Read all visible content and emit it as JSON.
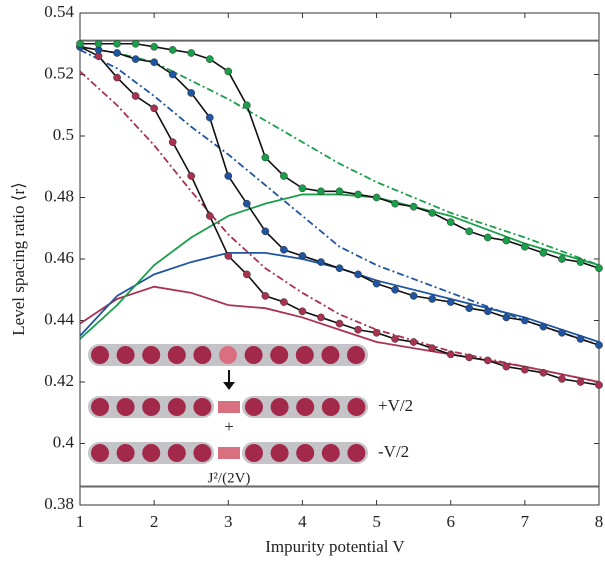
{
  "chart_data": {
    "type": "line",
    "xlabel": "Impurity potential V",
    "ylabel": "Level spacing ratio ⟨r⟩",
    "xlim": [
      1,
      8
    ],
    "ylim": [
      0.38,
      0.54
    ],
    "xticks": [
      1,
      2,
      3,
      4,
      5,
      6,
      7,
      8
    ],
    "yticks": [
      0.38,
      0.4,
      0.42,
      0.44,
      0.46,
      0.48,
      0.5,
      0.52,
      0.54
    ],
    "reference_lines": [
      0.531,
      0.386
    ],
    "reference_color": "#666666",
    "series": [
      {
        "style": "solid",
        "color": "#a8324f",
        "x": [
          1,
          1.5,
          2,
          2.5,
          3,
          3.5,
          4,
          4.5,
          5,
          6,
          7,
          8
        ],
        "values": [
          0.439,
          0.447,
          0.451,
          0.449,
          0.445,
          0.444,
          0.441,
          0.437,
          0.433,
          0.429,
          0.425,
          0.42
        ]
      },
      {
        "style": "solid",
        "color": "#1f55a0",
        "x": [
          1,
          1.5,
          2,
          2.5,
          3,
          3.5,
          4,
          4.5,
          5,
          6,
          7,
          8
        ],
        "values": [
          0.435,
          0.448,
          0.455,
          0.459,
          0.462,
          0.462,
          0.46,
          0.457,
          0.453,
          0.447,
          0.441,
          0.433
        ]
      },
      {
        "style": "solid",
        "color": "#1a9e4a",
        "x": [
          1,
          1.5,
          2,
          2.5,
          3,
          3.5,
          4,
          4.5,
          5,
          6,
          7,
          8
        ],
        "values": [
          0.434,
          0.445,
          0.458,
          0.467,
          0.474,
          0.478,
          0.481,
          0.481,
          0.48,
          0.474,
          0.465,
          0.458
        ]
      },
      {
        "style": "dashdot",
        "color": "#a8324f",
        "x": [
          1,
          1.5,
          2,
          2.5,
          3,
          3.5,
          4,
          4.5,
          5,
          6,
          7,
          8
        ],
        "values": [
          0.521,
          0.51,
          0.497,
          0.482,
          0.468,
          0.457,
          0.449,
          0.442,
          0.437,
          0.43,
          0.425,
          0.42
        ]
      },
      {
        "style": "dashdot",
        "color": "#1f55a0",
        "x": [
          1,
          1.5,
          2,
          2.5,
          3,
          3.5,
          4,
          4.5,
          5,
          6,
          7,
          8
        ],
        "values": [
          0.528,
          0.522,
          0.513,
          0.503,
          0.494,
          0.484,
          0.474,
          0.464,
          0.458,
          0.449,
          0.44,
          0.432
        ]
      },
      {
        "style": "dashdot",
        "color": "#1a9e4a",
        "x": [
          1,
          1.5,
          2,
          2.5,
          3,
          3.5,
          4,
          4.5,
          5,
          6,
          7,
          8
        ],
        "values": [
          0.529,
          0.527,
          0.524,
          0.518,
          0.512,
          0.505,
          0.498,
          0.491,
          0.485,
          0.475,
          0.467,
          0.458
        ]
      },
      {
        "style": "dots",
        "color": "#a8324f",
        "line_color": "#111111",
        "x": [
          1,
          1.25,
          1.5,
          1.75,
          2,
          2.25,
          2.5,
          2.75,
          3,
          3.25,
          3.5,
          3.75,
          4,
          4.25,
          4.5,
          4.75,
          5,
          5.25,
          5.5,
          5.75,
          6,
          6.25,
          6.5,
          6.75,
          7,
          7.25,
          7.5,
          7.75,
          8
        ],
        "values": [
          0.529,
          0.526,
          0.519,
          0.513,
          0.509,
          0.498,
          0.487,
          0.474,
          0.461,
          0.455,
          0.448,
          0.446,
          0.443,
          0.441,
          0.439,
          0.437,
          0.436,
          0.434,
          0.433,
          0.431,
          0.429,
          0.428,
          0.427,
          0.425,
          0.424,
          0.423,
          0.421,
          0.42,
          0.419
        ]
      },
      {
        "style": "dots",
        "color": "#1f55a0",
        "line_color": "#111111",
        "x": [
          1,
          1.25,
          1.5,
          1.75,
          2,
          2.25,
          2.5,
          2.75,
          3,
          3.25,
          3.5,
          3.75,
          4,
          4.25,
          4.5,
          4.75,
          5,
          5.25,
          5.5,
          5.75,
          6,
          6.25,
          6.5,
          6.75,
          7,
          7.25,
          7.5,
          7.75,
          8
        ],
        "values": [
          0.529,
          0.528,
          0.527,
          0.525,
          0.524,
          0.52,
          0.514,
          0.506,
          0.487,
          0.478,
          0.469,
          0.463,
          0.461,
          0.459,
          0.457,
          0.455,
          0.452,
          0.45,
          0.448,
          0.447,
          0.446,
          0.444,
          0.443,
          0.441,
          0.44,
          0.438,
          0.436,
          0.434,
          0.432
        ]
      },
      {
        "style": "dots",
        "color": "#1a9e4a",
        "line_color": "#111111",
        "x": [
          1,
          1.25,
          1.5,
          1.75,
          2,
          2.25,
          2.5,
          2.75,
          3,
          3.25,
          3.5,
          3.75,
          4,
          4.25,
          4.5,
          4.75,
          5,
          5.25,
          5.5,
          5.75,
          6,
          6.25,
          6.5,
          6.75,
          7,
          7.25,
          7.5,
          7.75,
          8
        ],
        "values": [
          0.53,
          0.53,
          0.53,
          0.53,
          0.529,
          0.528,
          0.527,
          0.525,
          0.521,
          0.51,
          0.493,
          0.487,
          0.483,
          0.482,
          0.482,
          0.481,
          0.48,
          0.478,
          0.477,
          0.475,
          0.472,
          0.469,
          0.467,
          0.466,
          0.464,
          0.462,
          0.46,
          0.459,
          0.457
        ]
      }
    ],
    "inset_labels": [
      "+V/2",
      "+",
      "-V/2",
      "J²/(2V)"
    ]
  }
}
